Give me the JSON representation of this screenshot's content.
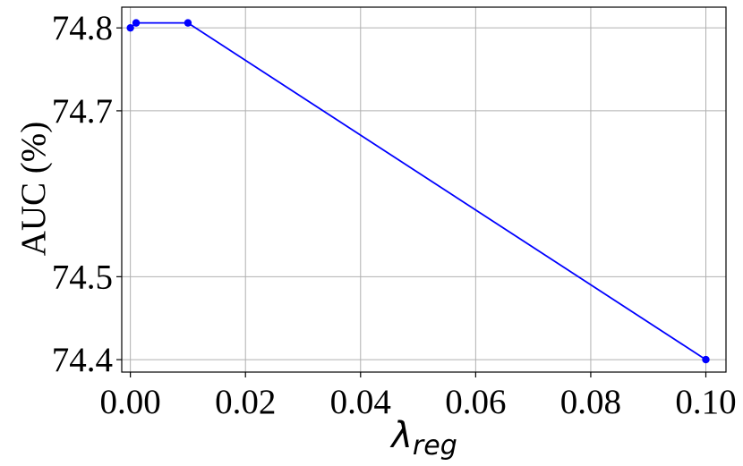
{
  "chart_data": {
    "type": "line",
    "title": "",
    "xlabel": {
      "main": "λ",
      "sub": "reg"
    },
    "ylabel": "AUC (%)",
    "xlim": [
      -0.0015,
      0.1035
    ],
    "ylim": [
      74.385,
      74.825
    ],
    "xticks": [
      0.0,
      0.02,
      0.04,
      0.06,
      0.08,
      0.1
    ],
    "xtick_labels": [
      "0.00",
      "0.02",
      "0.04",
      "0.06",
      "0.08",
      "0.10"
    ],
    "yticks": [
      74.4,
      74.5,
      74.7,
      74.8
    ],
    "ytick_labels": [
      "74.4",
      "74.5",
      "74.7",
      "74.8"
    ],
    "grid": true,
    "series": [
      {
        "color": "#0000ff",
        "marker": "circle",
        "points": [
          {
            "x": 0.0,
            "y": 74.8
          },
          {
            "x": 0.001,
            "y": 74.806
          },
          {
            "x": 0.01,
            "y": 74.806
          },
          {
            "x": 0.1,
            "y": 74.4
          }
        ]
      }
    ]
  }
}
